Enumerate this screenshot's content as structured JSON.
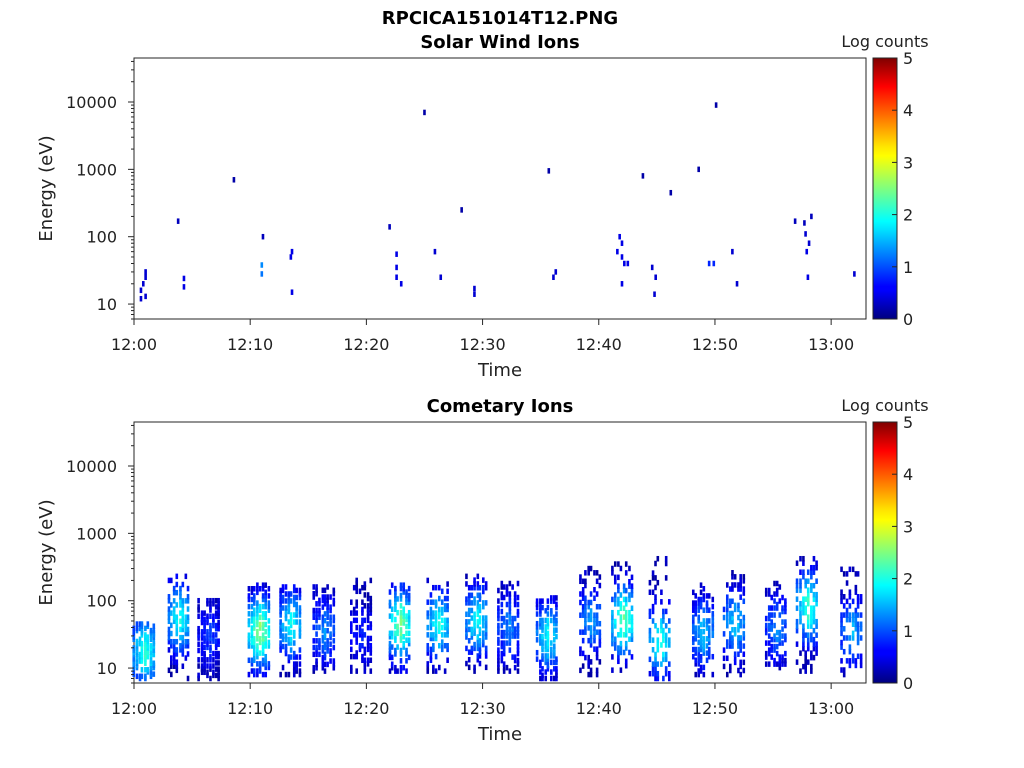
{
  "figure_title": "RPCICA151014T12.PNG",
  "chart_data": [
    {
      "type": "heatmap",
      "title": "Solar Wind Ions",
      "xlabel": "Time",
      "ylabel": "Energy (eV)",
      "x_ticks": [
        "12:00",
        "12:10",
        "12:20",
        "12:30",
        "12:40",
        "12:50",
        "13:00"
      ],
      "x_range_minutes": [
        0,
        63
      ],
      "y_ticks": [
        "10",
        "100",
        "1000",
        "10000"
      ],
      "y_scale": "log",
      "ylim": [
        6,
        45000
      ],
      "colorbar": {
        "label": "Log counts",
        "ticks": [
          "0",
          "1",
          "2",
          "3",
          "4",
          "5"
        ],
        "range": [
          0,
          5
        ],
        "colormap": "jet"
      },
      "points_note": "each point: [minutes after 12:00, energy eV, log counts]",
      "points": [
        [
          0.6,
          12,
          0.4
        ],
        [
          0.6,
          16,
          0.4
        ],
        [
          0.8,
          20,
          0.4
        ],
        [
          1.0,
          25,
          0.4
        ],
        [
          1.0,
          30,
          0.4
        ],
        [
          1.0,
          13,
          0.4
        ],
        [
          4.3,
          18,
          0.5
        ],
        [
          4.3,
          24,
          0.5
        ],
        [
          3.8,
          170,
          0.3
        ],
        [
          8.6,
          700,
          0.2
        ],
        [
          11.0,
          28,
          1.2
        ],
        [
          11.0,
          38,
          1.3
        ],
        [
          11.1,
          100,
          0.3
        ],
        [
          13.5,
          50,
          0.5
        ],
        [
          13.6,
          60,
          0.5
        ],
        [
          13.6,
          15,
          0.5
        ],
        [
          22.0,
          140,
          0.3
        ],
        [
          22.6,
          55,
          0.5
        ],
        [
          22.6,
          35,
          0.5
        ],
        [
          22.6,
          25,
          0.5
        ],
        [
          23.0,
          20,
          0.5
        ],
        [
          25.0,
          7000,
          0.2
        ],
        [
          25.9,
          60,
          0.4
        ],
        [
          26.4,
          25,
          0.4
        ],
        [
          28.2,
          250,
          0.2
        ],
        [
          29.3,
          17,
          0.4
        ],
        [
          29.3,
          14,
          0.4
        ],
        [
          35.7,
          950,
          0.2
        ],
        [
          36.1,
          25,
          0.4
        ],
        [
          36.3,
          30,
          0.4
        ],
        [
          41.6,
          60,
          0.5
        ],
        [
          41.8,
          100,
          0.5
        ],
        [
          42.0,
          80,
          0.5
        ],
        [
          42.0,
          50,
          0.5
        ],
        [
          42.2,
          40,
          0.5
        ],
        [
          42.0,
          20,
          0.5
        ],
        [
          42.5,
          40,
          0.5
        ],
        [
          43.8,
          800,
          0.2
        ],
        [
          44.6,
          35,
          0.4
        ],
        [
          44.9,
          25,
          0.4
        ],
        [
          44.8,
          14,
          0.4
        ],
        [
          46.2,
          450,
          0.2
        ],
        [
          48.6,
          1000,
          0.2
        ],
        [
          49.5,
          40,
          0.8
        ],
        [
          49.9,
          40,
          0.8
        ],
        [
          50.1,
          9000,
          0.2
        ],
        [
          51.5,
          60,
          0.4
        ],
        [
          51.9,
          20,
          0.4
        ],
        [
          56.9,
          170,
          0.3
        ],
        [
          57.7,
          160,
          0.3
        ],
        [
          57.8,
          110,
          0.4
        ],
        [
          57.9,
          60,
          0.5
        ],
        [
          58.0,
          25,
          0.5
        ],
        [
          58.1,
          80,
          0.4
        ],
        [
          58.3,
          200,
          0.3
        ],
        [
          62.0,
          28,
          0.4
        ]
      ]
    },
    {
      "type": "heatmap",
      "title": "Cometary Ions",
      "xlabel": "Time",
      "ylabel": "Energy (eV)",
      "x_ticks": [
        "12:00",
        "12:10",
        "12:20",
        "12:30",
        "12:40",
        "12:50",
        "13:00"
      ],
      "x_range_minutes": [
        0,
        63
      ],
      "y_ticks": [
        "10",
        "100",
        "1000",
        "10000"
      ],
      "y_scale": "log",
      "ylim": [
        6,
        45000
      ],
      "colorbar": {
        "label": "Log counts",
        "ticks": [
          "0",
          "1",
          "2",
          "3",
          "4",
          "5"
        ],
        "range": [
          0,
          5
        ],
        "colormap": "jet"
      },
      "bursts_note": "each burst: [center minutes, e_low eV, e_high eV, peak log counts, peak energy eV]",
      "bursts": [
        [
          0.9,
          7,
          45,
          2.1,
          18
        ],
        [
          3.9,
          7,
          230,
          2.0,
          55
        ],
        [
          6.5,
          7,
          100,
          0.9,
          30
        ],
        [
          10.8,
          8,
          170,
          2.6,
          35
        ],
        [
          13.5,
          8,
          160,
          1.9,
          45
        ],
        [
          16.4,
          9,
          160,
          1.3,
          35
        ],
        [
          19.6,
          9,
          200,
          0.8,
          30
        ],
        [
          22.9,
          9,
          170,
          2.5,
          45
        ],
        [
          26.2,
          9,
          200,
          2.0,
          45
        ],
        [
          29.5,
          9,
          230,
          1.9,
          50
        ],
        [
          32.3,
          9,
          180,
          1.3,
          40
        ],
        [
          35.6,
          7,
          110,
          1.9,
          30
        ],
        [
          39.3,
          8,
          300,
          1.4,
          50
        ],
        [
          42.1,
          8,
          350,
          2.4,
          50
        ],
        [
          45.3,
          7,
          420,
          2.1,
          25
        ],
        [
          49.0,
          8,
          170,
          1.6,
          35
        ],
        [
          51.7,
          8,
          260,
          1.7,
          45
        ],
        [
          55.3,
          9,
          180,
          1.3,
          40
        ],
        [
          58.0,
          9,
          420,
          2.2,
          80
        ],
        [
          61.8,
          8,
          400,
          1.5,
          35
        ]
      ]
    }
  ]
}
